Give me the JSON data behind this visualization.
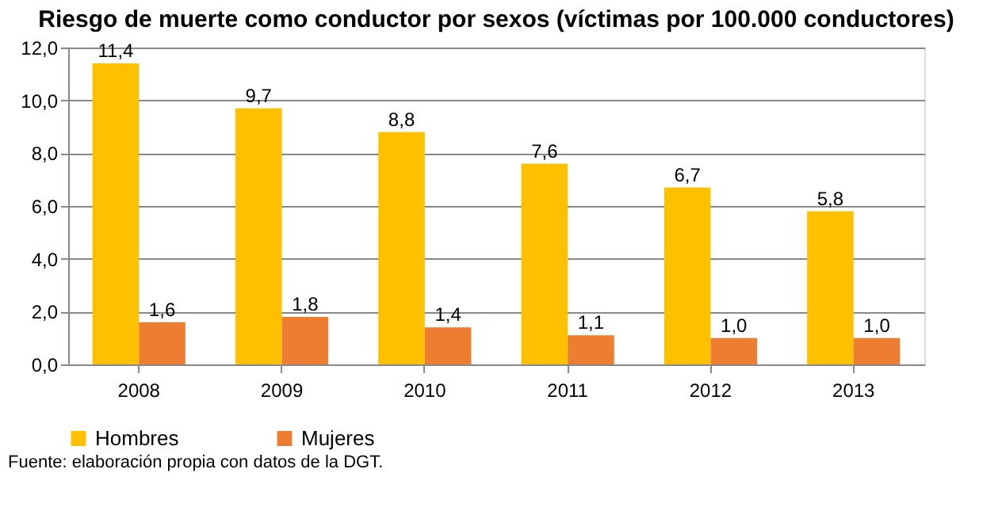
{
  "chart_data": {
    "type": "bar",
    "title": "Riesgo de muerte como conductor por sexos (víctimas por 100.000 conductores)",
    "categories": [
      "2008",
      "2009",
      "2010",
      "2011",
      "2012",
      "2013"
    ],
    "series": [
      {
        "name": "Hombres",
        "color": "#ffc000",
        "values": [
          11.4,
          9.7,
          8.8,
          7.6,
          6.7,
          5.8
        ],
        "value_labels": [
          "11,4",
          "9,7",
          "8,8",
          "7,6",
          "6,7",
          "5,8"
        ]
      },
      {
        "name": "Mujeres",
        "color": "#ed7d31",
        "values": [
          1.6,
          1.8,
          1.4,
          1.1,
          1.0,
          1.0
        ],
        "value_labels": [
          "1,6",
          "1,8",
          "1,4",
          "1,1",
          "1,0",
          "1,0"
        ]
      }
    ],
    "ylim": [
      0,
      12
    ],
    "yticks": [
      {
        "value": 0,
        "label": "0,0"
      },
      {
        "value": 2,
        "label": "2,0"
      },
      {
        "value": 4,
        "label": "4,0"
      },
      {
        "value": 6,
        "label": "6,0"
      },
      {
        "value": 8,
        "label": "8,0"
      },
      {
        "value": 10,
        "label": "10,0"
      },
      {
        "value": 12,
        "label": "12,0"
      }
    ],
    "grid": "y",
    "legend": "bottom",
    "annotations": [
      "Fuente: elaboración propia con datos de la DGT."
    ]
  }
}
